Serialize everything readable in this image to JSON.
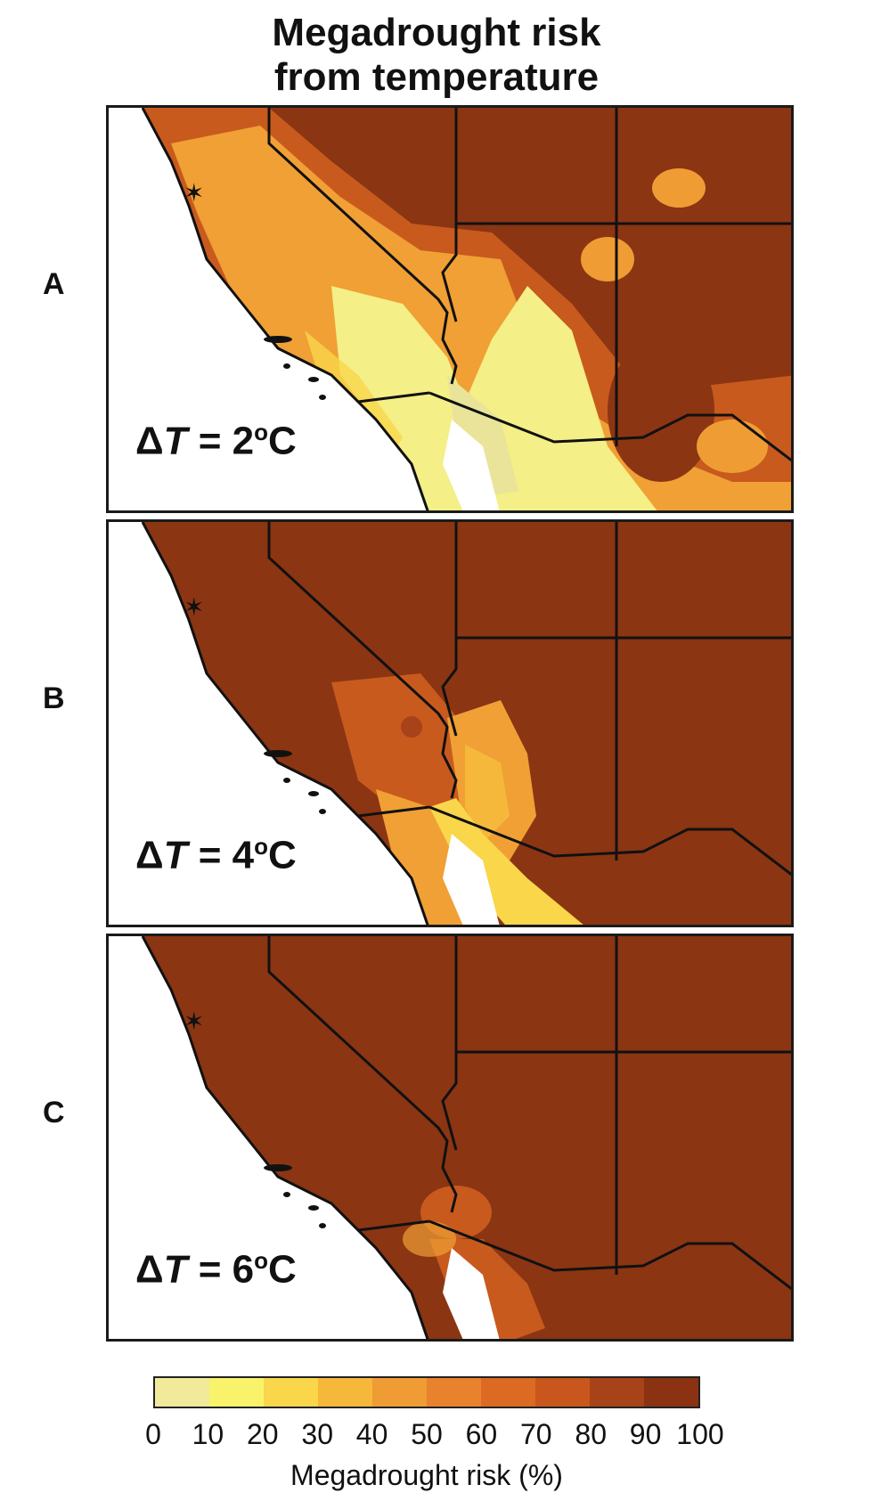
{
  "title": {
    "line1": "Megadrought risk",
    "line2": "from temperature"
  },
  "panels": [
    {
      "label": "A",
      "delta_label": "ΔT = 2°C",
      "delta_T": "2",
      "unit": "C",
      "risk_level": "low-to-high"
    },
    {
      "label": "B",
      "delta_label": "ΔT = 4°C",
      "delta_T": "4",
      "unit": "C",
      "risk_level": "mostly-high"
    },
    {
      "label": "C",
      "delta_label": "ΔT = 6°C",
      "delta_T": "6",
      "unit": "C",
      "risk_level": "near-total"
    }
  ],
  "colorbar": {
    "label": "Megadrought risk (%)",
    "ticks": [
      "0",
      "10",
      "20",
      "30",
      "40",
      "50",
      "60",
      "70",
      "80",
      "90",
      "100"
    ],
    "colors": [
      "#f0ea9a",
      "#f8f36a",
      "#f9d64a",
      "#f5b83b",
      "#f09c34",
      "#e8822c",
      "#dc6a22",
      "#c9561c",
      "#a84218",
      "#8a3212"
    ]
  },
  "map_colors": {
    "low": "#f4ef86",
    "mid": "#f0a035",
    "high": "#c85a1e",
    "max": "#8b3513",
    "border": "#111111",
    "ocean": "#ffffff"
  }
}
